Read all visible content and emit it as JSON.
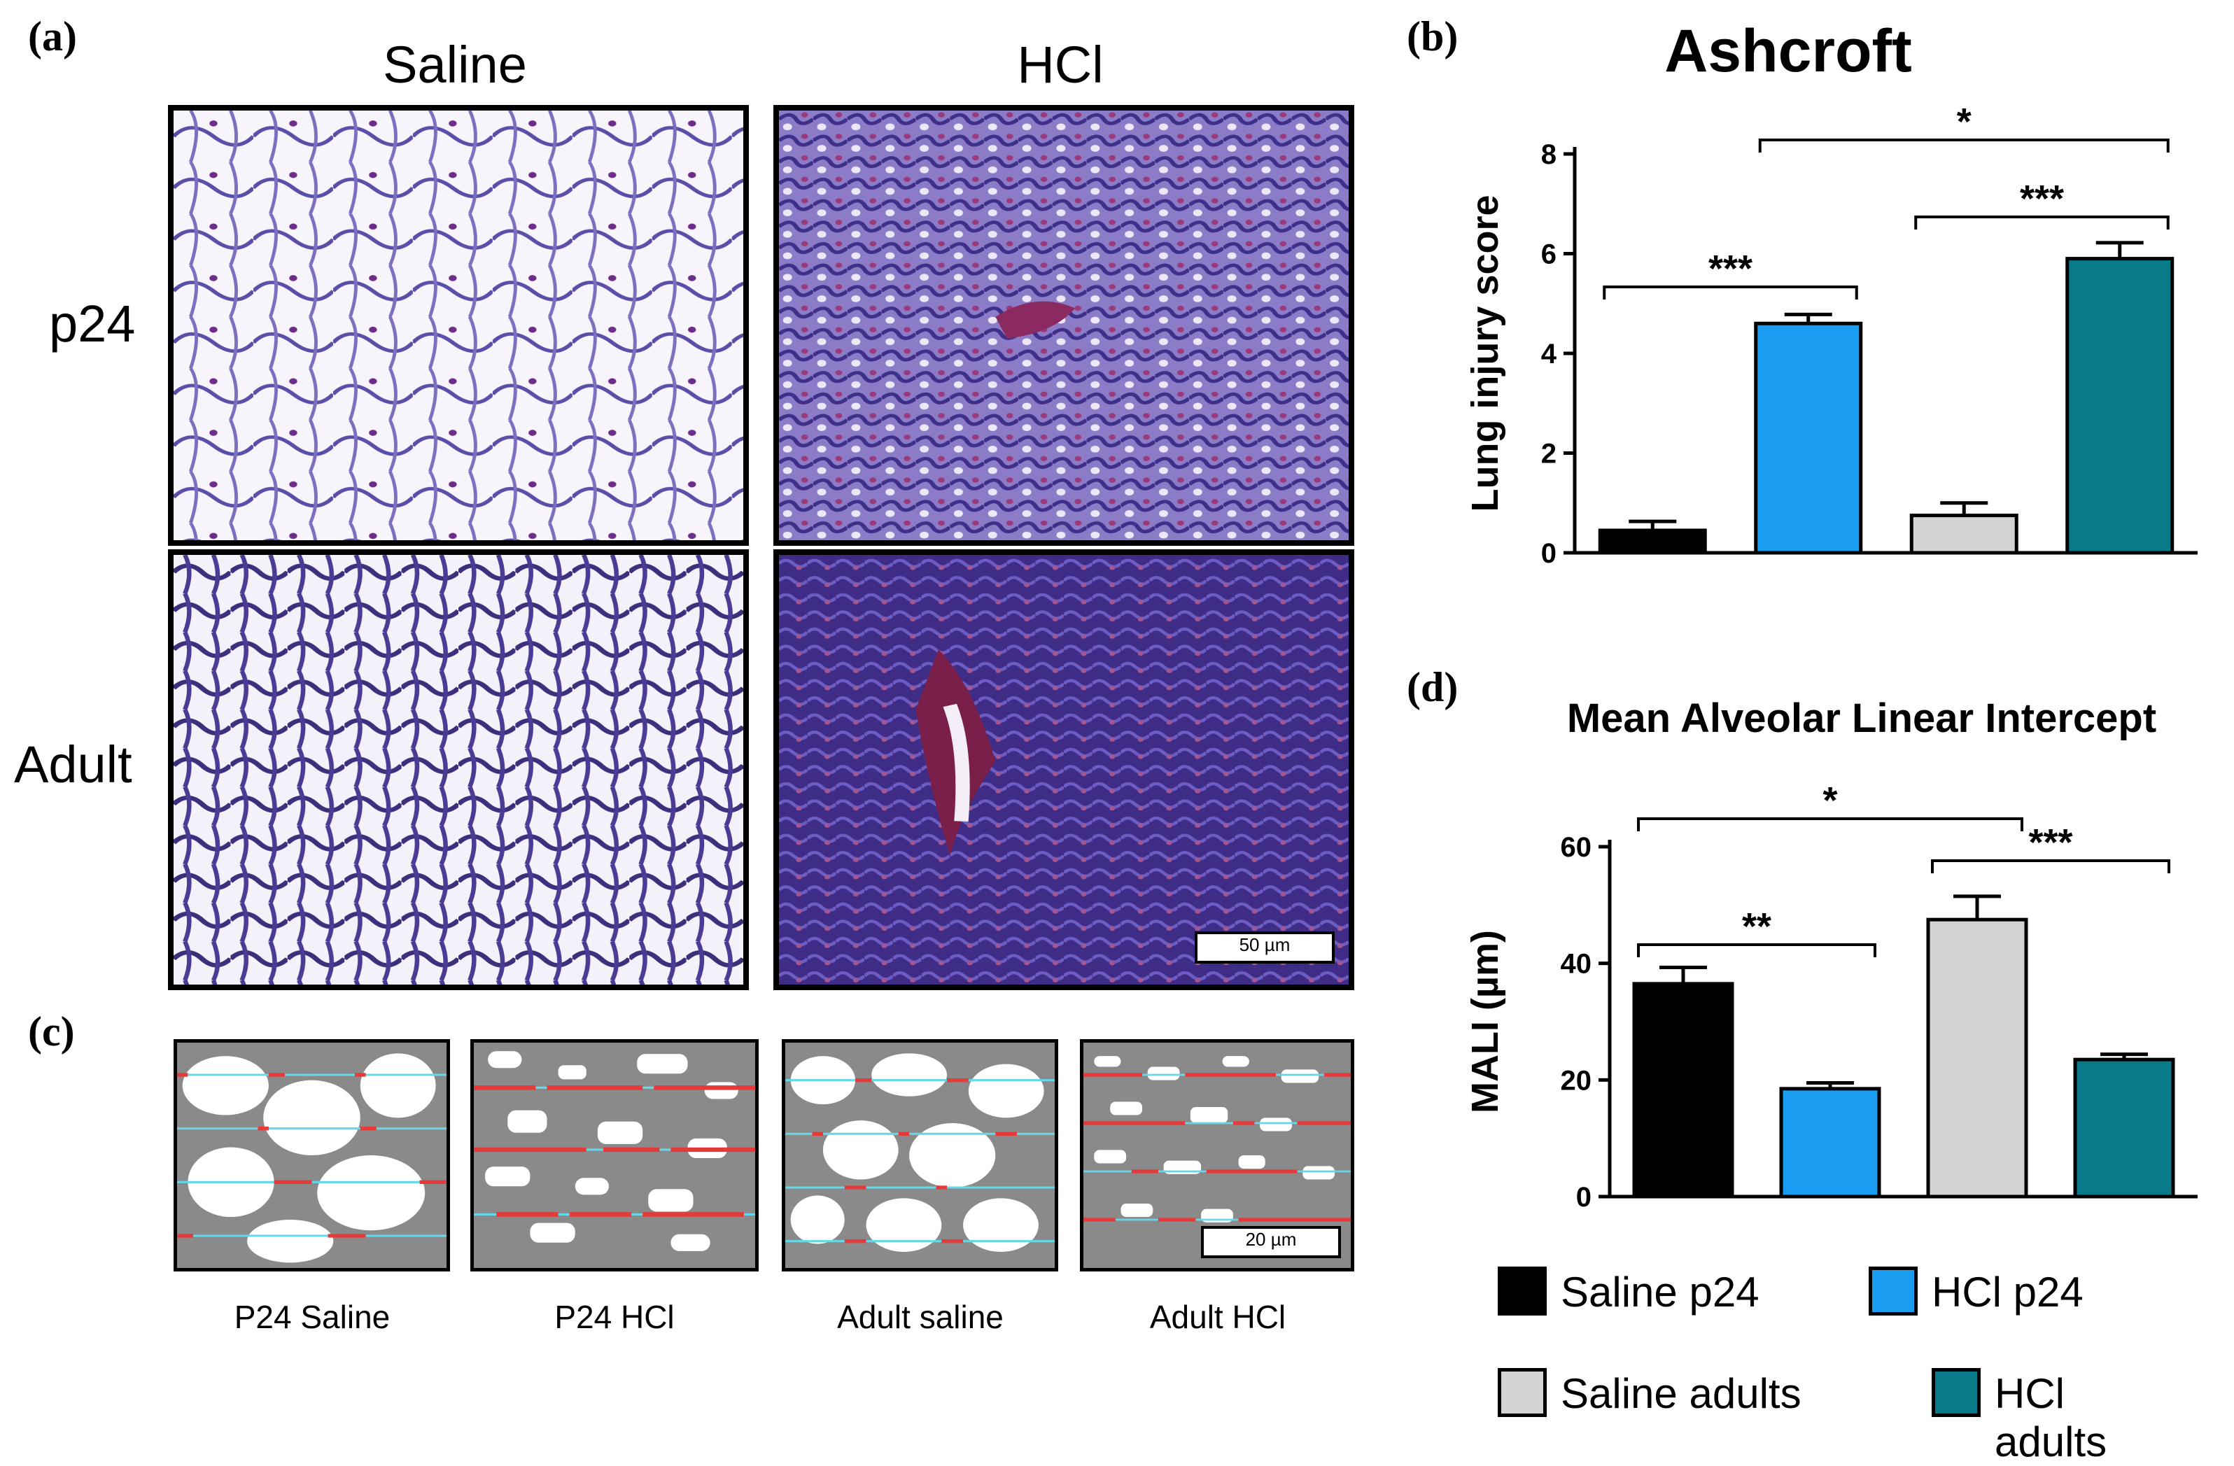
{
  "panels": {
    "a": {
      "letter": "(a)",
      "columns": [
        "Saline",
        "HCl"
      ],
      "rows": [
        "p24",
        "Adult"
      ],
      "scale_bar": "50 µm"
    },
    "b": {
      "letter": "(b)"
    },
    "c": {
      "letter": "(c)",
      "captions": [
        "P24 Saline",
        "P24 HCl",
        "Adult saline",
        "Adult HCl"
      ],
      "scale_bar": "20 µm"
    },
    "d": {
      "letter": "(d)"
    }
  },
  "colors": {
    "saline_p24": "#000000",
    "hcl_p24": "#1A9CF0",
    "saline_adults": "#D3D3D3",
    "hcl_adults": "#087A8A"
  },
  "chart_data": [
    {
      "id": "ashcroft",
      "type": "bar",
      "title": "Ashcroft",
      "xlabel": "",
      "ylabel": "Lung injury score",
      "ylim": [
        0,
        8
      ],
      "yticks": [
        0,
        2,
        4,
        6,
        8
      ],
      "categories": [
        "Saline p24",
        "HCl p24",
        "Saline adults",
        "HCl adults"
      ],
      "values": [
        0.45,
        4.6,
        0.75,
        5.9
      ],
      "errors": [
        0.18,
        0.18,
        0.25,
        0.32
      ],
      "significance": [
        {
          "from": 0,
          "to": 1,
          "label": "***"
        },
        {
          "from": 2,
          "to": 3,
          "label": "***"
        },
        {
          "from": 1,
          "to": 3,
          "label": "*"
        }
      ]
    },
    {
      "id": "mali",
      "type": "bar",
      "title": "Mean Alveolar Linear Intercept",
      "xlabel": "",
      "ylabel": "MALI (µm)",
      "ylim": [
        0,
        60
      ],
      "yticks": [
        0,
        20,
        40,
        60
      ],
      "categories": [
        "Saline p24",
        "HCl p24",
        "Saline adults",
        "HCl adults"
      ],
      "values": [
        36.5,
        18.5,
        47.5,
        23.5
      ],
      "errors": [
        2.8,
        1.0,
        4.0,
        0.9
      ],
      "significance": [
        {
          "from": 0,
          "to": 1,
          "label": "**"
        },
        {
          "from": 0,
          "to": 2,
          "label": "*"
        },
        {
          "from": 2,
          "to": 3,
          "label": "***"
        }
      ]
    }
  ],
  "legend": [
    {
      "label": "Saline p24",
      "color": "#000000"
    },
    {
      "label": "HCl p24",
      "color": "#1A9CF0"
    },
    {
      "label": "Saline adults",
      "color": "#D3D3D3"
    },
    {
      "label": "HCl adults",
      "color": "#087A8A"
    }
  ]
}
